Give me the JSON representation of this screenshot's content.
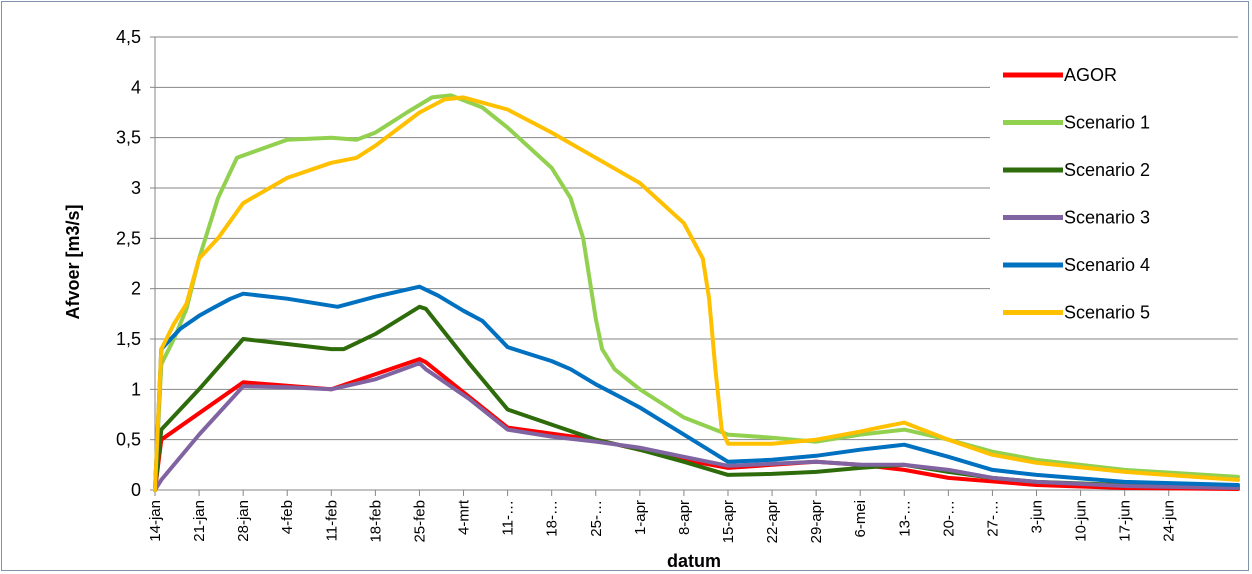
{
  "chart_data": {
    "type": "line",
    "title": "",
    "xlabel": "datum",
    "ylabel": "Afvoer [m3/s]",
    "ylim": [
      0,
      4.5
    ],
    "yticks": [
      "0",
      "0,5",
      "1",
      "1,5",
      "2",
      "2,5",
      "3",
      "3,5",
      "4",
      "4,5"
    ],
    "xticks": [
      "14-jan",
      "21-jan",
      "28-jan",
      "4-feb",
      "11-feb",
      "18-feb",
      "25-feb",
      "4-mrt",
      "11-…",
      "18-…",
      "25-…",
      "1-apr",
      "8-apr",
      "15-apr",
      "22-apr",
      "29-apr",
      "6-mei",
      "13-…",
      "20-…",
      "27-…",
      "3-jun",
      "10-jun",
      "17-jun",
      "24-jun"
    ],
    "xlim_days": [
      0,
      172
    ],
    "grid": true,
    "legend_position": "right",
    "series": [
      {
        "name": "AGOR",
        "color": "#ff0000",
        "points": [
          [
            0,
            0
          ],
          [
            1,
            0.5
          ],
          [
            14,
            1.07
          ],
          [
            28,
            1.0
          ],
          [
            42,
            1.3
          ],
          [
            43,
            1.27
          ],
          [
            56,
            0.62
          ],
          [
            70,
            0.5
          ],
          [
            84,
            0.3
          ],
          [
            91,
            0.22
          ],
          [
            98,
            0.25
          ],
          [
            105,
            0.28
          ],
          [
            112,
            0.25
          ],
          [
            119,
            0.2
          ],
          [
            126,
            0.12
          ],
          [
            140,
            0.05
          ],
          [
            154,
            0.02
          ],
          [
            172,
            0.01
          ]
        ]
      },
      {
        "name": "Scenario 1",
        "color": "#92d050",
        "points": [
          [
            0,
            0
          ],
          [
            1,
            1.25
          ],
          [
            3,
            1.5
          ],
          [
            5,
            1.8
          ],
          [
            7,
            2.3
          ],
          [
            10,
            2.9
          ],
          [
            13,
            3.3
          ],
          [
            21,
            3.48
          ],
          [
            28,
            3.5
          ],
          [
            32,
            3.48
          ],
          [
            35,
            3.55
          ],
          [
            40,
            3.75
          ],
          [
            44,
            3.9
          ],
          [
            47,
            3.92
          ],
          [
            52,
            3.8
          ],
          [
            56,
            3.6
          ],
          [
            63,
            3.2
          ],
          [
            66,
            2.9
          ],
          [
            68,
            2.5
          ],
          [
            70,
            1.7
          ],
          [
            71,
            1.4
          ],
          [
            73,
            1.2
          ],
          [
            77,
            1.0
          ],
          [
            84,
            0.72
          ],
          [
            91,
            0.55
          ],
          [
            98,
            0.52
          ],
          [
            105,
            0.48
          ],
          [
            112,
            0.55
          ],
          [
            119,
            0.6
          ],
          [
            126,
            0.5
          ],
          [
            133,
            0.38
          ],
          [
            140,
            0.3
          ],
          [
            154,
            0.2
          ],
          [
            172,
            0.13
          ]
        ]
      },
      {
        "name": "Scenario 2",
        "color": "#2e6b0a",
        "points": [
          [
            0,
            0
          ],
          [
            1,
            0.6
          ],
          [
            7,
            1.0
          ],
          [
            14,
            1.5
          ],
          [
            21,
            1.45
          ],
          [
            28,
            1.4
          ],
          [
            30,
            1.4
          ],
          [
            35,
            1.55
          ],
          [
            42,
            1.82
          ],
          [
            43,
            1.8
          ],
          [
            50,
            1.25
          ],
          [
            56,
            0.8
          ],
          [
            63,
            0.65
          ],
          [
            70,
            0.5
          ],
          [
            77,
            0.4
          ],
          [
            84,
            0.28
          ],
          [
            91,
            0.15
          ],
          [
            98,
            0.16
          ],
          [
            105,
            0.18
          ],
          [
            112,
            0.22
          ],
          [
            119,
            0.25
          ],
          [
            126,
            0.18
          ],
          [
            133,
            0.12
          ],
          [
            140,
            0.08
          ],
          [
            154,
            0.05
          ],
          [
            172,
            0.03
          ]
        ]
      },
      {
        "name": "Scenario 3",
        "color": "#8064a2",
        "points": [
          [
            0,
            0
          ],
          [
            1,
            0.1
          ],
          [
            7,
            0.55
          ],
          [
            14,
            1.03
          ],
          [
            21,
            1.02
          ],
          [
            28,
            1.0
          ],
          [
            35,
            1.1
          ],
          [
            42,
            1.26
          ],
          [
            43,
            1.2
          ],
          [
            50,
            0.9
          ],
          [
            56,
            0.6
          ],
          [
            63,
            0.53
          ],
          [
            70,
            0.48
          ],
          [
            77,
            0.42
          ],
          [
            84,
            0.33
          ],
          [
            91,
            0.24
          ],
          [
            98,
            0.26
          ],
          [
            105,
            0.28
          ],
          [
            112,
            0.25
          ],
          [
            119,
            0.25
          ],
          [
            126,
            0.2
          ],
          [
            133,
            0.12
          ],
          [
            140,
            0.08
          ],
          [
            154,
            0.04
          ],
          [
            172,
            0.02
          ]
        ]
      },
      {
        "name": "Scenario 4",
        "color": "#0070c0",
        "points": [
          [
            0,
            0
          ],
          [
            1,
            1.4
          ],
          [
            4,
            1.6
          ],
          [
            7,
            1.73
          ],
          [
            9,
            1.8
          ],
          [
            12,
            1.9
          ],
          [
            14,
            1.95
          ],
          [
            21,
            1.9
          ],
          [
            28,
            1.83
          ],
          [
            29,
            1.82
          ],
          [
            35,
            1.92
          ],
          [
            42,
            2.02
          ],
          [
            45,
            1.93
          ],
          [
            49,
            1.78
          ],
          [
            52,
            1.68
          ],
          [
            56,
            1.42
          ],
          [
            63,
            1.28
          ],
          [
            66,
            1.2
          ],
          [
            70,
            1.05
          ],
          [
            74,
            0.92
          ],
          [
            77,
            0.82
          ],
          [
            84,
            0.55
          ],
          [
            91,
            0.28
          ],
          [
            98,
            0.3
          ],
          [
            105,
            0.34
          ],
          [
            112,
            0.4
          ],
          [
            119,
            0.45
          ],
          [
            126,
            0.33
          ],
          [
            133,
            0.2
          ],
          [
            140,
            0.15
          ],
          [
            154,
            0.08
          ],
          [
            172,
            0.05
          ]
        ]
      },
      {
        "name": "Scenario 5",
        "color": "#ffc000",
        "points": [
          [
            0,
            0
          ],
          [
            1,
            1.4
          ],
          [
            3,
            1.65
          ],
          [
            5,
            1.85
          ],
          [
            7,
            2.3
          ],
          [
            10,
            2.5
          ],
          [
            14,
            2.85
          ],
          [
            21,
            3.1
          ],
          [
            28,
            3.25
          ],
          [
            32,
            3.3
          ],
          [
            35,
            3.42
          ],
          [
            42,
            3.75
          ],
          [
            46,
            3.88
          ],
          [
            49,
            3.9
          ],
          [
            56,
            3.78
          ],
          [
            63,
            3.55
          ],
          [
            70,
            3.3
          ],
          [
            77,
            3.05
          ],
          [
            84,
            2.65
          ],
          [
            87,
            2.3
          ],
          [
            88,
            1.9
          ],
          [
            89,
            1.2
          ],
          [
            90,
            0.6
          ],
          [
            91,
            0.46
          ],
          [
            98,
            0.46
          ],
          [
            105,
            0.5
          ],
          [
            112,
            0.58
          ],
          [
            115,
            0.62
          ],
          [
            119,
            0.67
          ],
          [
            126,
            0.5
          ],
          [
            133,
            0.35
          ],
          [
            140,
            0.27
          ],
          [
            154,
            0.18
          ],
          [
            172,
            0.1
          ]
        ]
      }
    ]
  }
}
